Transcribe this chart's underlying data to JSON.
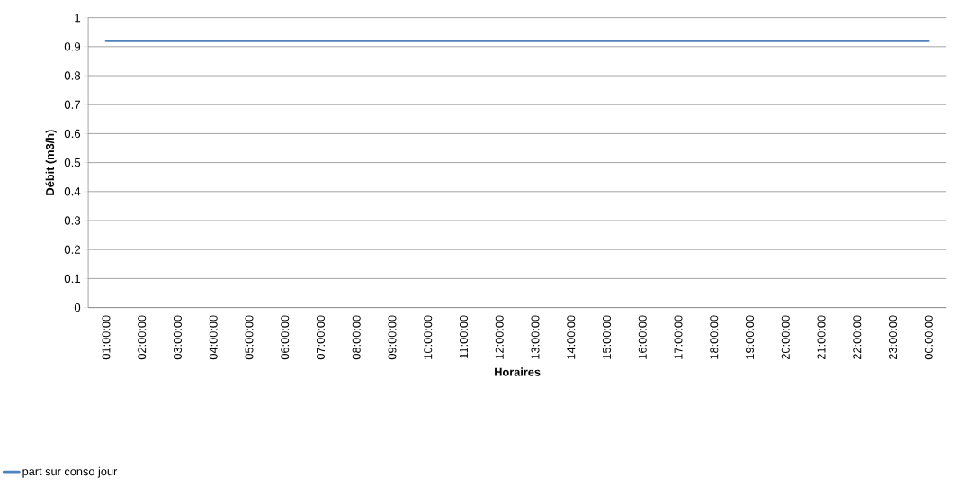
{
  "chart_data": {
    "type": "line",
    "xlabel": "Horaires",
    "ylabel": "Débit (m3/h)",
    "categories": [
      "01:00:00",
      "02:00:00",
      "03:00:00",
      "04:00:00",
      "05:00:00",
      "06:00:00",
      "07:00:00",
      "08:00:00",
      "09:00:00",
      "10:00:00",
      "11:00:00",
      "12:00:00",
      "13:00:00",
      "14:00:00",
      "15:00:00",
      "16:00:00",
      "17:00:00",
      "18:00:00",
      "19:00:00",
      "20:00:00",
      "21:00:00",
      "22:00:00",
      "23:00:00",
      "00:00:00"
    ],
    "series": [
      {
        "name": "part sur conso jour",
        "color": "#4f81bd",
        "values": [
          0.92,
          0.92,
          0.92,
          0.92,
          0.92,
          0.92,
          0.92,
          0.92,
          0.92,
          0.92,
          0.92,
          0.92,
          0.92,
          0.92,
          0.92,
          0.92,
          0.92,
          0.92,
          0.92,
          0.92,
          0.92,
          0.92,
          0.92,
          0.92
        ]
      }
    ],
    "ylim": [
      0,
      1
    ],
    "yticks": [
      0,
      0.1,
      0.2,
      0.3,
      0.4,
      0.5,
      0.6,
      0.7,
      0.8,
      0.9,
      1
    ],
    "grid": "y",
    "legend": "bottom",
    "marker": "none",
    "line_style": "solid"
  }
}
